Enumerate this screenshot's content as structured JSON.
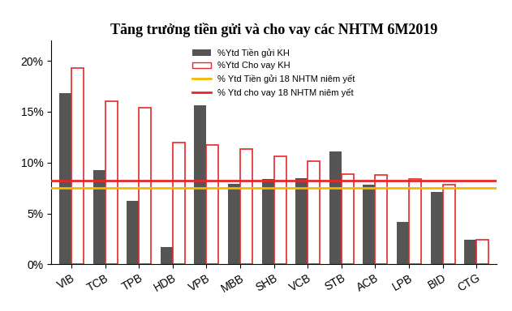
{
  "chart_data": {
    "type": "bar",
    "title": "Tăng trưởng tiền gửi và cho vay các NHTM 6M2019",
    "categories": [
      "VIB",
      "TCB",
      "TPB",
      "HDB",
      "VPB",
      "MBB",
      "SHB",
      "VCB",
      "STB",
      "ACB",
      "LPB",
      "BID",
      "CTG"
    ],
    "series": [
      {
        "name": "%Ytd Tiền gửi KH",
        "color": "#555555",
        "values": [
          16.8,
          9.3,
          6.2,
          1.7,
          15.6,
          7.9,
          8.4,
          8.5,
          11.1,
          7.8,
          4.2,
          7.1,
          2.4
        ]
      },
      {
        "name": "%Ytd Cho vay KH",
        "color": "#e8262a",
        "values": [
          19.3,
          16.0,
          15.4,
          12.0,
          11.7,
          11.3,
          10.6,
          10.1,
          8.9,
          8.8,
          8.4,
          7.8,
          2.4
        ]
      }
    ],
    "reference_lines": [
      {
        "name": "% Ytd Tiền gửi 18 NHTM niêm yết",
        "color": "#f5b800",
        "value": 7.5
      },
      {
        "name": "% Ytd cho vay 18 NHTM niêm yết",
        "color": "#e8262a",
        "value": 8.2
      }
    ],
    "ylim": [
      0,
      22
    ],
    "yticks": [
      {
        "value": 0,
        "label": "0%"
      },
      {
        "value": 5,
        "label": "5%"
      },
      {
        "value": 10,
        "label": "10%"
      },
      {
        "value": 15,
        "label": "15%"
      },
      {
        "value": 20,
        "label": "20%"
      }
    ],
    "grid": false,
    "legend": "upper center"
  }
}
